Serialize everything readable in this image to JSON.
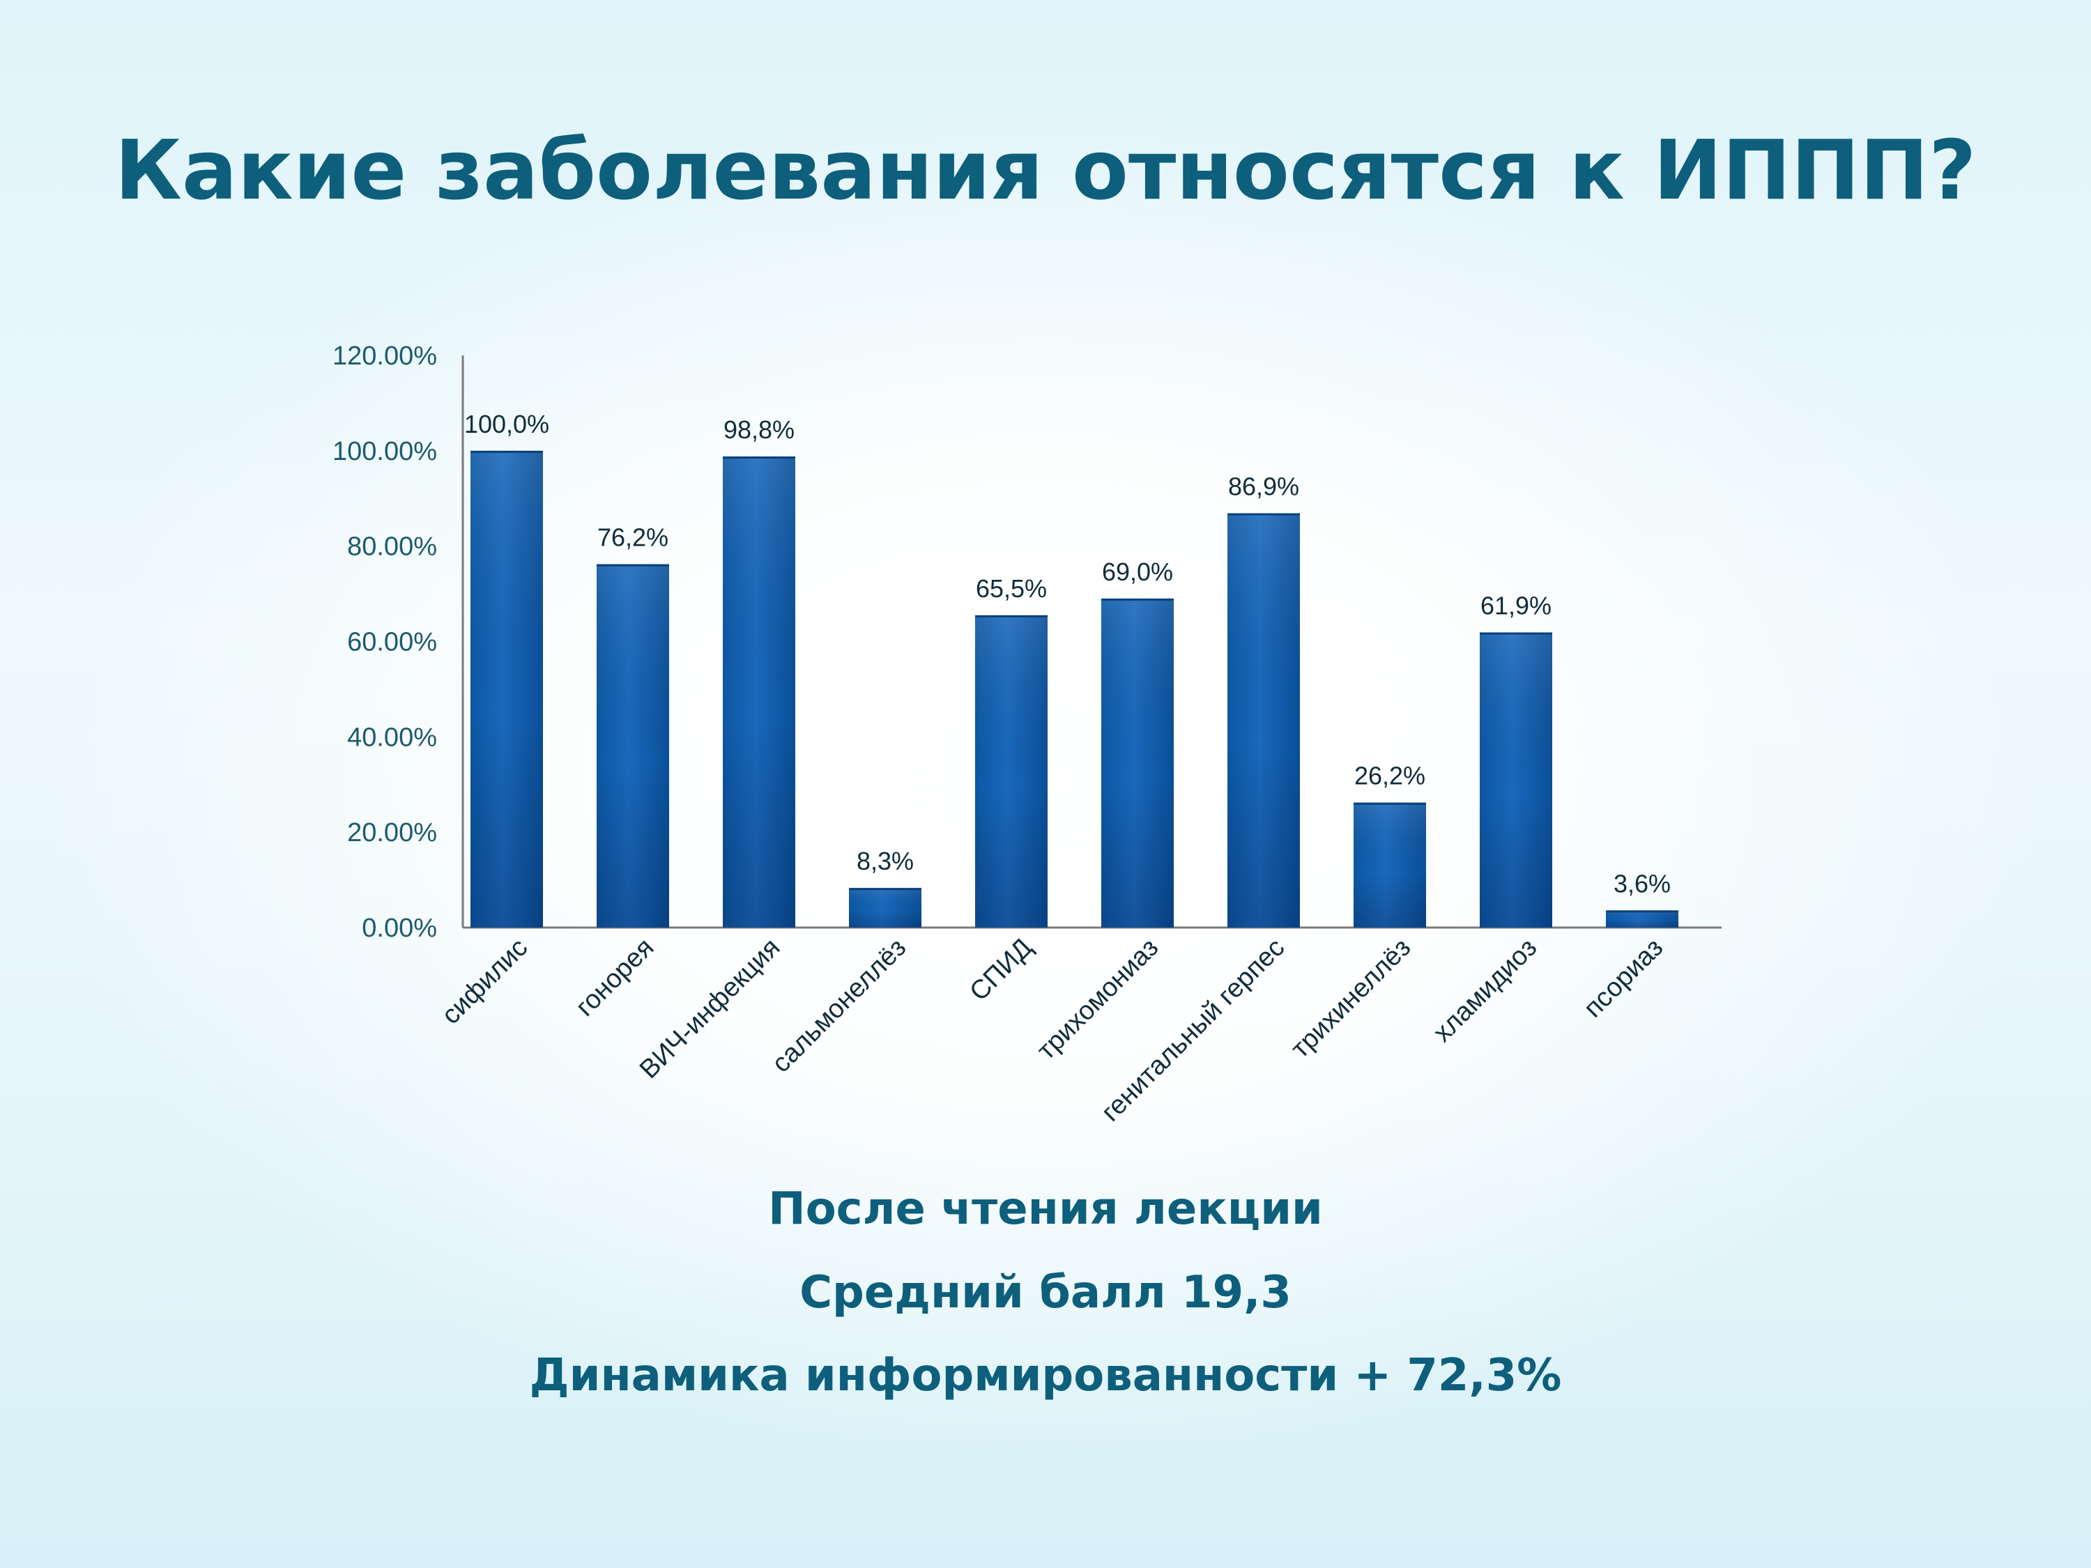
{
  "slide": {
    "title": "Какие заболевания относятся к ИППП?",
    "captions": [
      "После чтения лекции",
      "Средний балл 19,3",
      "Динамика информированности + 72,3%"
    ]
  },
  "colors": {
    "title": "#0d5f7c",
    "bar_light": "#1867bb",
    "bar_dark": "#034a8e",
    "axis_text": "#1c5a6e",
    "label_text": "#102c3a",
    "axis_line": "#7a7a7a"
  },
  "chart_data": {
    "type": "bar",
    "title": "",
    "xlabel": "",
    "ylabel": "",
    "categories": [
      "сифилис",
      "гонорея",
      "ВИЧ-инфекция",
      "сальмонеллёз",
      "СПИД",
      "трихомониаз",
      "генитальный герпес",
      "трихинеллёз",
      "хламидиоз",
      "псориаз"
    ],
    "values": [
      100.0,
      76.2,
      98.8,
      8.3,
      65.5,
      69.0,
      86.9,
      26.2,
      61.9,
      3.6
    ],
    "data_labels": [
      "100,0%",
      "76,2%",
      "98,8%",
      "8,3%",
      "65,5%",
      "69,0%",
      "86,9%",
      "26,2%",
      "61,9%",
      "3,6%"
    ],
    "ylim": [
      0,
      120
    ],
    "yticks": [
      0,
      20,
      40,
      60,
      80,
      100,
      120
    ],
    "ytick_labels": [
      "0.00%",
      "20.00%",
      "40.00%",
      "60.00%",
      "80.00%",
      "100.00%",
      "120.00%"
    ],
    "grid": false,
    "legend": "none"
  }
}
